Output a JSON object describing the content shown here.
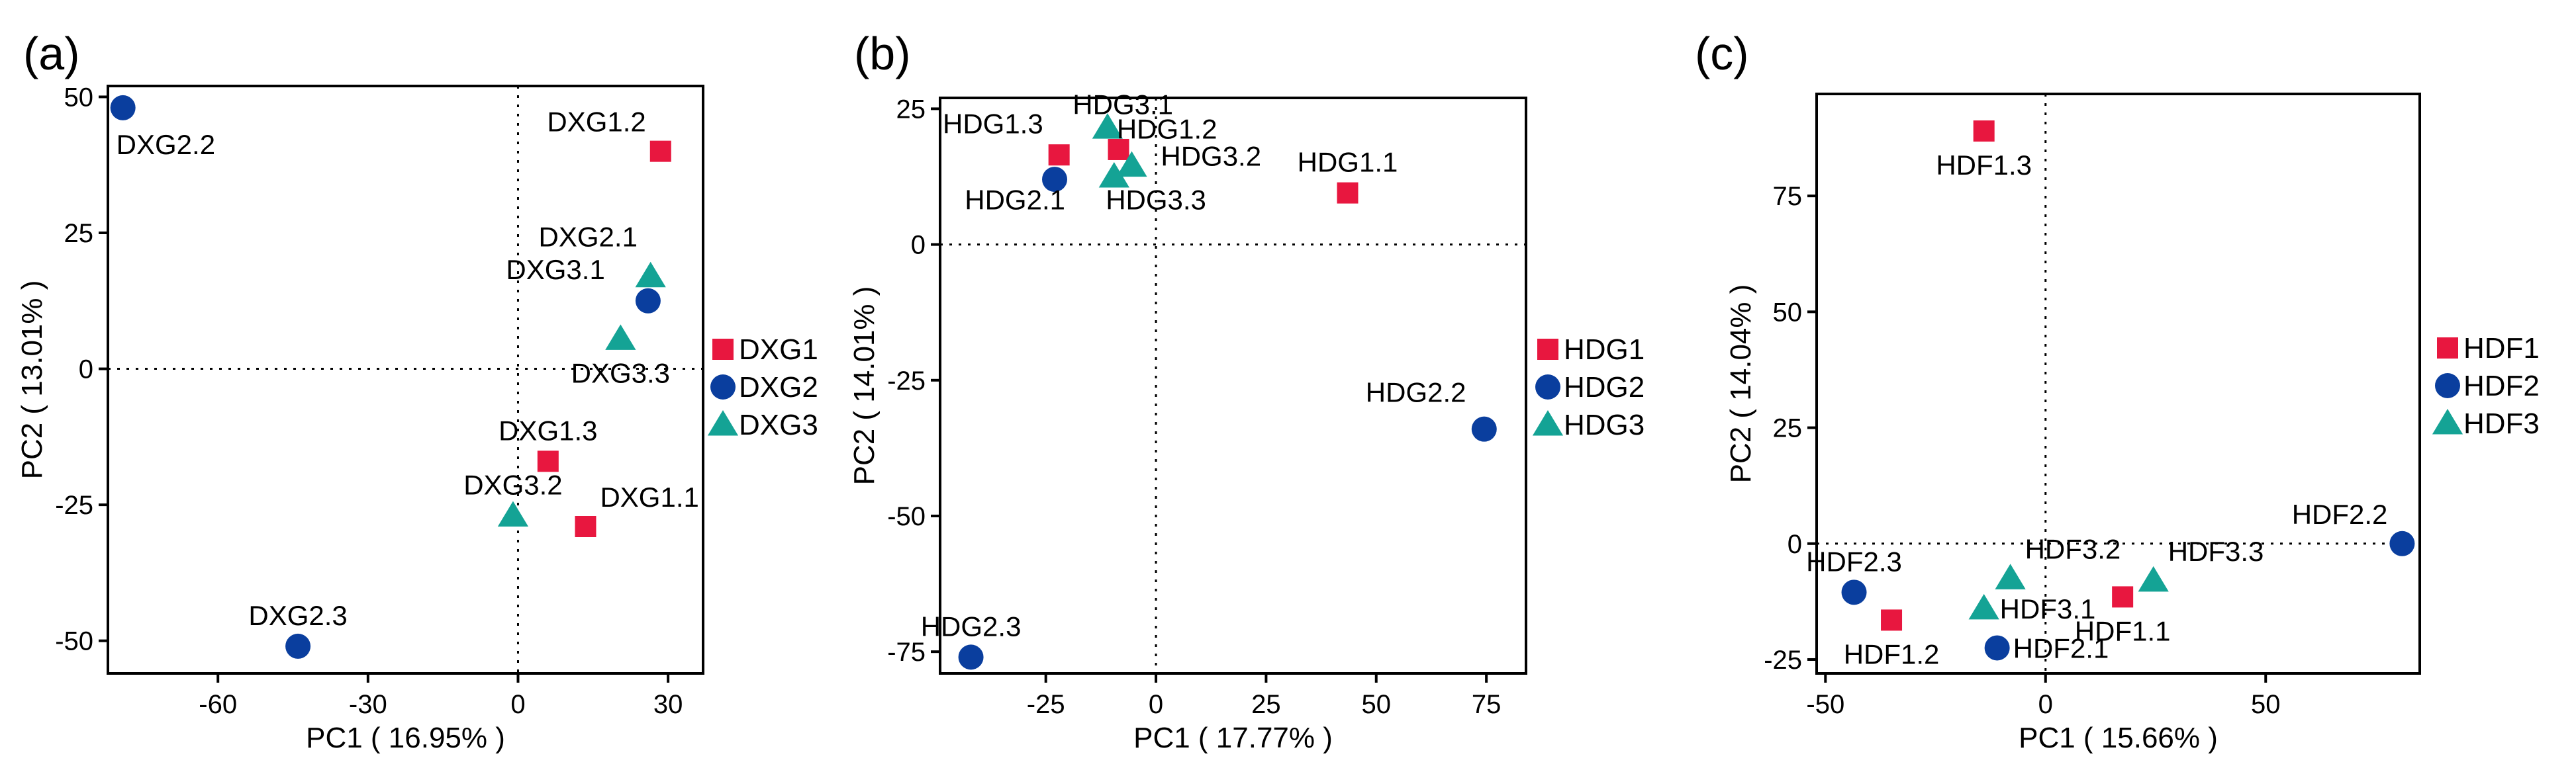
{
  "colors": {
    "group1": "#e8173f",
    "group2": "#0a3e9e",
    "group3": "#14a395"
  },
  "chart_data": [
    {
      "type": "scatter",
      "panel_label": "(a)",
      "xlabel": "PC1 ( 16.95% )",
      "ylabel": "PC2 ( 13.01% )",
      "xlim": [
        -82,
        37
      ],
      "ylim": [
        -56,
        52
      ],
      "xticks": [
        {
          "v": -60,
          "label": "-60"
        },
        {
          "v": -30,
          "label": "-30"
        },
        {
          "v": 0,
          "label": "0"
        },
        {
          "v": 30,
          "label": "30"
        }
      ],
      "yticks": [
        {
          "v": 50,
          "label": "50"
        },
        {
          "v": 25,
          "label": "25"
        },
        {
          "v": 0,
          "label": "0"
        },
        {
          "v": -25,
          "label": "-25"
        },
        {
          "v": -50,
          "label": "-50"
        }
      ],
      "legend": [
        {
          "name": "DXG1",
          "shape": "square",
          "color": "#e8173f"
        },
        {
          "name": "DXG2",
          "shape": "circle",
          "color": "#0a3e9e"
        },
        {
          "name": "DXG3",
          "shape": "triangle",
          "color": "#14a395"
        }
      ],
      "points": [
        {
          "label": "DXG1.1",
          "x": 13.5,
          "y": -29,
          "shape": "square",
          "color": "#e8173f",
          "lpos": "tr"
        },
        {
          "label": "DXG1.2",
          "x": 28.5,
          "y": 40,
          "shape": "square",
          "color": "#e8173f",
          "lpos": "tl"
        },
        {
          "label": "DXG1.3",
          "x": 6,
          "y": -17,
          "shape": "square",
          "color": "#e8173f",
          "lpos": "tc"
        },
        {
          "label": "DXG2.1",
          "x": 26,
          "y": 12.5,
          "shape": "circle",
          "color": "#0a3e9e",
          "lpos": "none"
        },
        {
          "label": "DXG2.2",
          "x": -79,
          "y": 48,
          "shape": "circle",
          "color": "#0a3e9e",
          "lpos": "br"
        },
        {
          "label": "DXG2.3",
          "x": -44,
          "y": -51,
          "shape": "circle",
          "color": "#0a3e9e",
          "lpos": "tc"
        },
        {
          "label": "DXG3.1",
          "x": 26.5,
          "y": 17,
          "shape": "triangle",
          "color": "#14a395",
          "lpos": "none"
        },
        {
          "label": "DXG3.2",
          "x": -1,
          "y": -27,
          "shape": "triangle",
          "color": "#14a395",
          "lpos": "tc"
        },
        {
          "label": "DXG3.3",
          "x": 20.5,
          "y": 5.5,
          "shape": "triangle",
          "color": "#14a395",
          "lpos": "bc"
        }
      ],
      "extra_labels": [
        {
          "text": "DXG2.1",
          "x": 14,
          "y": 22.5
        },
        {
          "text": "DXG3.1",
          "x": 7.5,
          "y": 16.5
        }
      ]
    },
    {
      "type": "scatter",
      "panel_label": "(b)",
      "xlabel": "PC1 ( 17.77% )",
      "ylabel": "PC2 ( 14.01% )",
      "xlim": [
        -49,
        84
      ],
      "ylim": [
        -79,
        27
      ],
      "xticks": [
        {
          "v": -25,
          "label": "-25"
        },
        {
          "v": 0,
          "label": "0"
        },
        {
          "v": 25,
          "label": "25"
        },
        {
          "v": 50,
          "label": "50"
        },
        {
          "v": 75,
          "label": "75"
        }
      ],
      "yticks": [
        {
          "v": 25,
          "label": "25"
        },
        {
          "v": 0,
          "label": "0"
        },
        {
          "v": -25,
          "label": "-25"
        },
        {
          "v": -50,
          "label": "-50"
        },
        {
          "v": -75,
          "label": "-75"
        }
      ],
      "legend": [
        {
          "name": "HDG1",
          "shape": "square",
          "color": "#e8173f"
        },
        {
          "name": "HDG2",
          "shape": "circle",
          "color": "#0a3e9e"
        },
        {
          "name": "HDG3",
          "shape": "triangle",
          "color": "#14a395"
        }
      ],
      "points": [
        {
          "label": "HDG1.1",
          "x": 43.5,
          "y": 9.5,
          "shape": "square",
          "color": "#e8173f",
          "lpos": "tc"
        },
        {
          "label": "HDG1.2",
          "x": -8.5,
          "y": 17.5,
          "shape": "square",
          "color": "#e8173f",
          "lpos": "none"
        },
        {
          "label": "HDG1.3",
          "x": -22,
          "y": 16.5,
          "shape": "square",
          "color": "#e8173f",
          "lpos": "none"
        },
        {
          "label": "HDG2.1",
          "x": -23,
          "y": 12,
          "shape": "circle",
          "color": "#0a3e9e",
          "lpos": "none"
        },
        {
          "label": "HDG2.2",
          "x": 74.5,
          "y": -34,
          "shape": "circle",
          "color": "#0a3e9e",
          "lpos": "none"
        },
        {
          "label": "HDG2.3",
          "x": -42,
          "y": -76,
          "shape": "circle",
          "color": "#0a3e9e",
          "lpos": "tc"
        },
        {
          "label": "HDG3.1",
          "x": -11,
          "y": 21.5,
          "shape": "triangle",
          "color": "#14a395",
          "lpos": "none"
        },
        {
          "label": "HDG3.2",
          "x": -5.5,
          "y": 14.5,
          "shape": "triangle",
          "color": "#14a395",
          "lpos": "none"
        },
        {
          "label": "HDG3.3",
          "x": -9.5,
          "y": 12.5,
          "shape": "triangle",
          "color": "#14a395",
          "lpos": "none"
        }
      ],
      "extra_labels": [
        {
          "text": "HDG3.1",
          "x": -7.5,
          "y": 24
        },
        {
          "text": "HDG1.2",
          "x": 2.5,
          "y": 19.5
        },
        {
          "text": "HDG1.3",
          "x": -37,
          "y": 20.5
        },
        {
          "text": "HDG3.2",
          "x": 12.5,
          "y": 14.5
        },
        {
          "text": "HDG2.1",
          "x": -32,
          "y": 6.5
        },
        {
          "text": "HDG3.3",
          "x": 0,
          "y": 6.5
        },
        {
          "text": "HDG2.2",
          "x": 59,
          "y": -29
        }
      ]
    },
    {
      "type": "scatter",
      "panel_label": "(c)",
      "xlabel": "PC1 ( 15.66% )",
      "ylabel": "PC2 ( 14.04% )",
      "xlim": [
        -52,
        85
      ],
      "ylim": [
        -28,
        97
      ],
      "xticks": [
        {
          "v": -50,
          "label": "-50"
        },
        {
          "v": 0,
          "label": "0"
        },
        {
          "v": 50,
          "label": "50"
        }
      ],
      "yticks": [
        {
          "v": 75,
          "label": "75"
        },
        {
          "v": 50,
          "label": "50"
        },
        {
          "v": 25,
          "label": "25"
        },
        {
          "v": 0,
          "label": "0"
        },
        {
          "v": -25,
          "label": "-25"
        }
      ],
      "legend": [
        {
          "name": "HDF1",
          "shape": "square",
          "color": "#e8173f"
        },
        {
          "name": "HDF2",
          "shape": "circle",
          "color": "#0a3e9e"
        },
        {
          "name": "HDF3",
          "shape": "triangle",
          "color": "#14a395"
        }
      ],
      "points": [
        {
          "label": "HDF1.1",
          "x": 17.5,
          "y": -11.5,
          "shape": "square",
          "color": "#e8173f",
          "lpos": "bc"
        },
        {
          "label": "HDF1.2",
          "x": -35,
          "y": -16.5,
          "shape": "square",
          "color": "#e8173f",
          "lpos": "bc"
        },
        {
          "label": "HDF1.3",
          "x": -14,
          "y": 89,
          "shape": "square",
          "color": "#e8173f",
          "lpos": "bc"
        },
        {
          "label": "HDF2.1",
          "x": -11,
          "y": -22.5,
          "shape": "circle",
          "color": "#0a3e9e",
          "lpos": "r"
        },
        {
          "label": "HDF2.2",
          "x": 81,
          "y": 0,
          "shape": "circle",
          "color": "#0a3e9e",
          "lpos": "tl"
        },
        {
          "label": "HDF2.3",
          "x": -43.5,
          "y": -10.5,
          "shape": "circle",
          "color": "#0a3e9e",
          "lpos": "tc"
        },
        {
          "label": "HDF3.1",
          "x": -14,
          "y": -14,
          "shape": "triangle",
          "color": "#14a395",
          "lpos": "r"
        },
        {
          "label": "HDF3.2",
          "x": -8,
          "y": -7.5,
          "shape": "triangle",
          "color": "#14a395",
          "lpos": "tr"
        },
        {
          "label": "HDF3.3",
          "x": 24.5,
          "y": -8,
          "shape": "triangle",
          "color": "#14a395",
          "lpos": "tr"
        }
      ],
      "extra_labels": []
    }
  ]
}
